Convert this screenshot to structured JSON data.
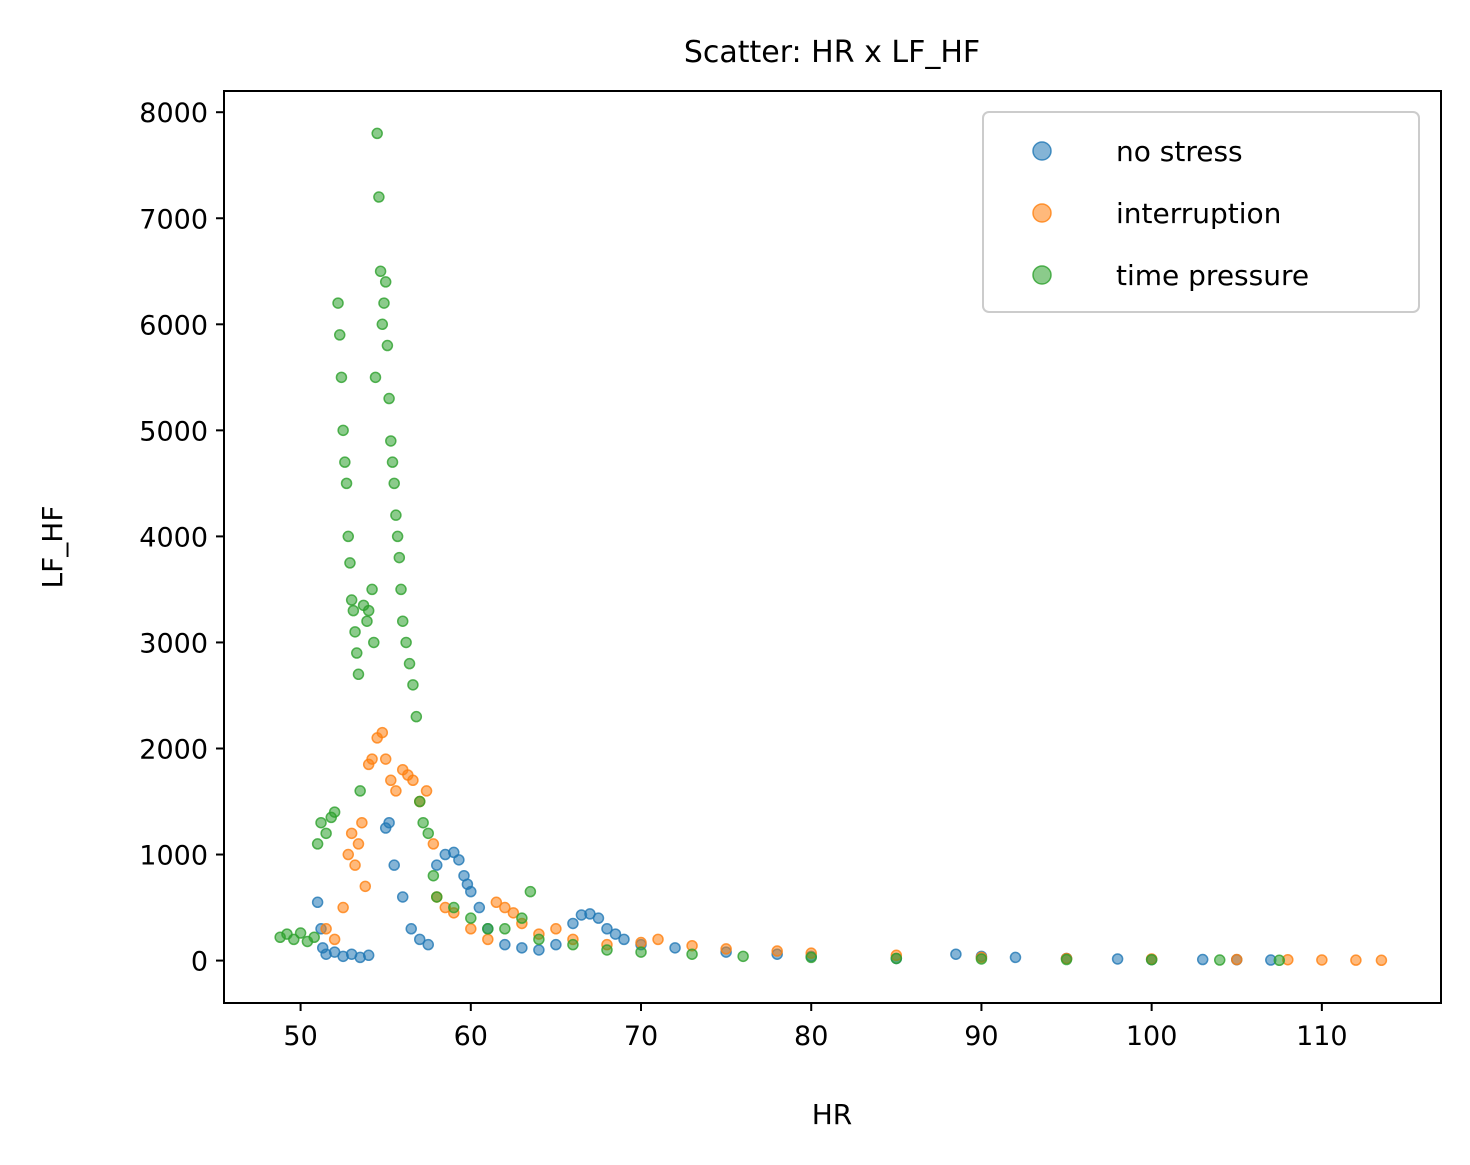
{
  "chart_data": {
    "type": "scatter",
    "title": "Scatter: HR x LF_HF",
    "xlabel": "HR",
    "ylabel": "LF_HF",
    "xlim": [
      45.5,
      117.0
    ],
    "ylim": [
      -400,
      8200
    ],
    "xticks": [
      50,
      60,
      70,
      80,
      90,
      100,
      110
    ],
    "yticks": [
      0,
      1000,
      2000,
      3000,
      4000,
      5000,
      6000,
      7000,
      8000
    ],
    "grid": false,
    "legend_position": "top-right",
    "series": [
      {
        "name": "no stress",
        "color": "#1f77b4",
        "points": [
          [
            51.0,
            550
          ],
          [
            51.2,
            300
          ],
          [
            51.3,
            120
          ],
          [
            51.5,
            60
          ],
          [
            52.0,
            80
          ],
          [
            52.5,
            40
          ],
          [
            53.0,
            60
          ],
          [
            53.5,
            30
          ],
          [
            54.0,
            50
          ],
          [
            55.0,
            1250
          ],
          [
            55.2,
            1300
          ],
          [
            55.5,
            900
          ],
          [
            56.0,
            600
          ],
          [
            56.5,
            300
          ],
          [
            57.0,
            200
          ],
          [
            57.5,
            150
          ],
          [
            58.0,
            900
          ],
          [
            58.5,
            1000
          ],
          [
            59.0,
            1020
          ],
          [
            59.3,
            950
          ],
          [
            59.6,
            800
          ],
          [
            59.8,
            720
          ],
          [
            60.0,
            650
          ],
          [
            60.5,
            500
          ],
          [
            61.0,
            300
          ],
          [
            62.0,
            150
          ],
          [
            63.0,
            120
          ],
          [
            64.0,
            100
          ],
          [
            65.0,
            150
          ],
          [
            66.0,
            350
          ],
          [
            66.5,
            430
          ],
          [
            67.0,
            440
          ],
          [
            67.5,
            400
          ],
          [
            68.0,
            300
          ],
          [
            68.5,
            250
          ],
          [
            69.0,
            200
          ],
          [
            70.0,
            150
          ],
          [
            72.0,
            120
          ],
          [
            75.0,
            80
          ],
          [
            78.0,
            60
          ],
          [
            80.0,
            40
          ],
          [
            85.0,
            20
          ],
          [
            88.5,
            60
          ],
          [
            90.0,
            40
          ],
          [
            92.0,
            30
          ],
          [
            95.0,
            20
          ],
          [
            98.0,
            15
          ],
          [
            100.0,
            10
          ],
          [
            103.0,
            10
          ],
          [
            105.0,
            8
          ],
          [
            107.0,
            5
          ]
        ]
      },
      {
        "name": "interruption",
        "color": "#ff7f0e",
        "points": [
          [
            51.5,
            300
          ],
          [
            52.0,
            200
          ],
          [
            52.5,
            500
          ],
          [
            52.8,
            1000
          ],
          [
            53.0,
            1200
          ],
          [
            53.2,
            900
          ],
          [
            53.4,
            1100
          ],
          [
            53.6,
            1300
          ],
          [
            53.8,
            700
          ],
          [
            54.0,
            1850
          ],
          [
            54.2,
            1900
          ],
          [
            54.5,
            2100
          ],
          [
            54.8,
            2150
          ],
          [
            55.0,
            1900
          ],
          [
            55.3,
            1700
          ],
          [
            55.6,
            1600
          ],
          [
            56.0,
            1800
          ],
          [
            56.3,
            1750
          ],
          [
            56.6,
            1700
          ],
          [
            57.0,
            1500
          ],
          [
            57.4,
            1600
          ],
          [
            57.8,
            1100
          ],
          [
            58.0,
            600
          ],
          [
            58.5,
            500
          ],
          [
            59.0,
            450
          ],
          [
            60.0,
            300
          ],
          [
            61.0,
            200
          ],
          [
            61.5,
            550
          ],
          [
            62.0,
            500
          ],
          [
            62.5,
            450
          ],
          [
            63.0,
            350
          ],
          [
            64.0,
            250
          ],
          [
            65.0,
            300
          ],
          [
            66.0,
            200
          ],
          [
            68.0,
            150
          ],
          [
            70.0,
            170
          ],
          [
            71.0,
            200
          ],
          [
            73.0,
            140
          ],
          [
            75.0,
            110
          ],
          [
            78.0,
            90
          ],
          [
            80.0,
            70
          ],
          [
            85.0,
            50
          ],
          [
            90.0,
            30
          ],
          [
            95.0,
            20
          ],
          [
            100.0,
            15
          ],
          [
            105.0,
            10
          ],
          [
            108.0,
            8
          ],
          [
            110.0,
            6
          ],
          [
            112.0,
            4
          ],
          [
            113.5,
            3
          ]
        ]
      },
      {
        "name": "time pressure",
        "color": "#2ca02c",
        "points": [
          [
            48.8,
            220
          ],
          [
            49.2,
            250
          ],
          [
            49.6,
            200
          ],
          [
            50.0,
            260
          ],
          [
            50.4,
            180
          ],
          [
            50.8,
            220
          ],
          [
            51.0,
            1100
          ],
          [
            51.2,
            1300
          ],
          [
            51.5,
            1200
          ],
          [
            51.8,
            1350
          ],
          [
            52.0,
            1400
          ],
          [
            52.2,
            6200
          ],
          [
            52.3,
            5900
          ],
          [
            52.4,
            5500
          ],
          [
            52.5,
            5000
          ],
          [
            52.6,
            4700
          ],
          [
            52.7,
            4500
          ],
          [
            52.8,
            4000
          ],
          [
            52.9,
            3750
          ],
          [
            53.0,
            3400
          ],
          [
            53.1,
            3300
          ],
          [
            53.2,
            3100
          ],
          [
            53.3,
            2900
          ],
          [
            53.4,
            2700
          ],
          [
            53.5,
            1600
          ],
          [
            53.7,
            3350
          ],
          [
            53.9,
            3200
          ],
          [
            54.0,
            3300
          ],
          [
            54.2,
            3500
          ],
          [
            54.3,
            3000
          ],
          [
            54.4,
            5500
          ],
          [
            54.5,
            7800
          ],
          [
            54.6,
            7200
          ],
          [
            54.7,
            6500
          ],
          [
            54.8,
            6000
          ],
          [
            54.9,
            6200
          ],
          [
            55.0,
            6400
          ],
          [
            55.1,
            5800
          ],
          [
            55.2,
            5300
          ],
          [
            55.3,
            4900
          ],
          [
            55.4,
            4700
          ],
          [
            55.5,
            4500
          ],
          [
            55.6,
            4200
          ],
          [
            55.7,
            4000
          ],
          [
            55.8,
            3800
          ],
          [
            55.9,
            3500
          ],
          [
            56.0,
            3200
          ],
          [
            56.2,
            3000
          ],
          [
            56.4,
            2800
          ],
          [
            56.6,
            2600
          ],
          [
            56.8,
            2300
          ],
          [
            57.0,
            1500
          ],
          [
            57.2,
            1300
          ],
          [
            57.5,
            1200
          ],
          [
            57.8,
            800
          ],
          [
            58.0,
            600
          ],
          [
            59.0,
            500
          ],
          [
            60.0,
            400
          ],
          [
            61.0,
            300
          ],
          [
            62.0,
            300
          ],
          [
            63.0,
            400
          ],
          [
            63.5,
            650
          ],
          [
            64.0,
            200
          ],
          [
            66.0,
            150
          ],
          [
            68.0,
            100
          ],
          [
            70.0,
            80
          ],
          [
            73.0,
            60
          ],
          [
            76.0,
            40
          ],
          [
            80.0,
            30
          ],
          [
            85.0,
            20
          ],
          [
            90.0,
            15
          ],
          [
            95.0,
            10
          ],
          [
            100.0,
            8
          ],
          [
            104.0,
            5
          ],
          [
            107.5,
            3
          ]
        ]
      }
    ]
  }
}
